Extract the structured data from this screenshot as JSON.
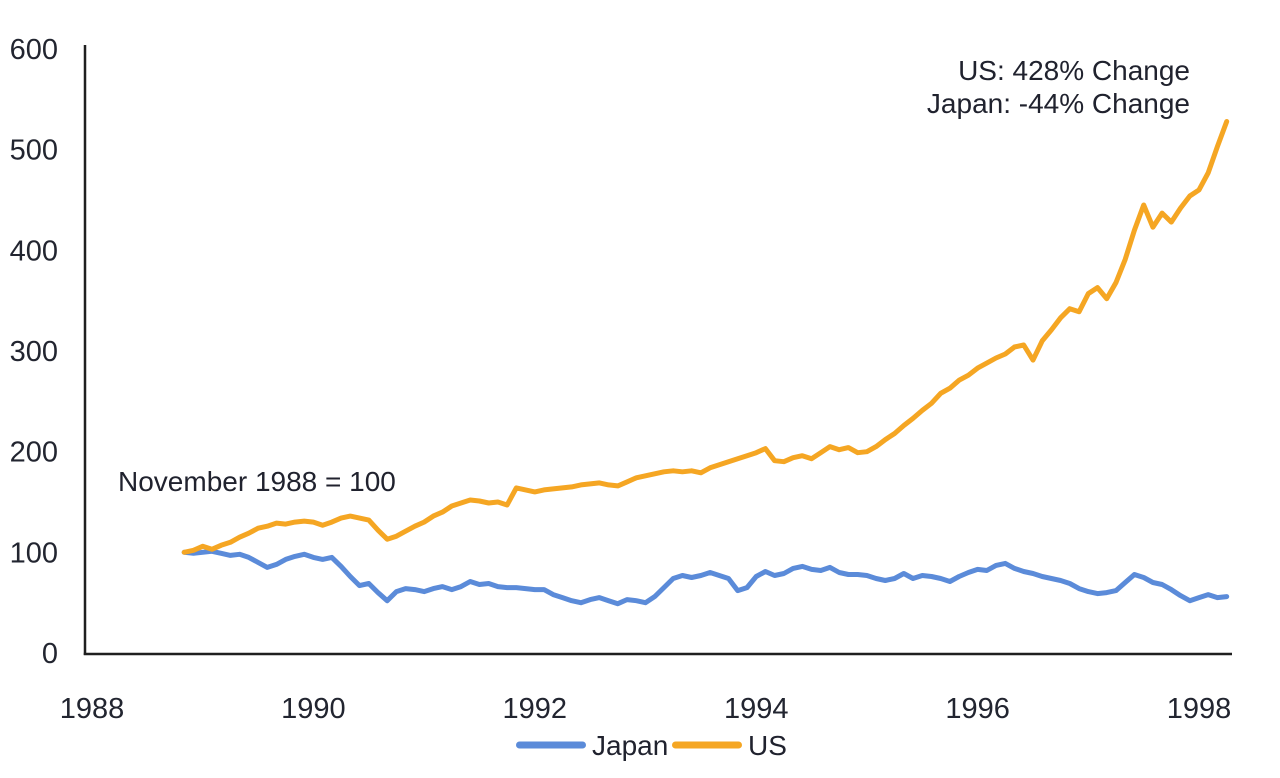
{
  "chart_data": {
    "type": "line",
    "title": "",
    "frequency": "monthly",
    "start": "1988-11",
    "end": "1998-04",
    "index_base_note": "November 1988 = 100",
    "x_axis": {
      "ticks": [
        1988,
        1990,
        1992,
        1994,
        1996,
        1998
      ],
      "range_years": [
        1988,
        1998.3
      ]
    },
    "y_axis": {
      "ticks": [
        0,
        100,
        200,
        300,
        400,
        500,
        600
      ],
      "range": [
        0,
        600
      ]
    },
    "grid": false,
    "legend_position": "bottom",
    "series": [
      {
        "name": "Japan",
        "color": "#5B8BD9",
        "total_change_pct": -44,
        "values": [
          100,
          99,
          100,
          101,
          99,
          97,
          98,
          95,
          90,
          85,
          88,
          93,
          96,
          98,
          95,
          93,
          95,
          86,
          76,
          67,
          69,
          60,
          52,
          61,
          64,
          63,
          61,
          64,
          66,
          63,
          66,
          71,
          68,
          69,
          66,
          65,
          65,
          64,
          63,
          63,
          58,
          55,
          52,
          50,
          53,
          55,
          52,
          49,
          53,
          52,
          50,
          56,
          65,
          74,
          77,
          75,
          77,
          80,
          77,
          74,
          62,
          65,
          76,
          81,
          77,
          79,
          84,
          86,
          83,
          82,
          85,
          80,
          78,
          78,
          77,
          74,
          72,
          74,
          79,
          74,
          77,
          76,
          74,
          71,
          76,
          80,
          83,
          82,
          87,
          89,
          84,
          81,
          79,
          76,
          74,
          72,
          69,
          64,
          61,
          59,
          60,
          62,
          70,
          78,
          75,
          70,
          68,
          63,
          57,
          52,
          55,
          58,
          55,
          56
        ]
      },
      {
        "name": "US",
        "color": "#F5A623",
        "total_change_pct": 428,
        "values": [
          100,
          102,
          106,
          103,
          107,
          110,
          115,
          119,
          124,
          126,
          129,
          128,
          130,
          131,
          130,
          127,
          130,
          134,
          136,
          134,
          132,
          122,
          113,
          116,
          121,
          126,
          130,
          136,
          140,
          146,
          149,
          152,
          151,
          149,
          150,
          147,
          164,
          162,
          160,
          162,
          163,
          164,
          165,
          167,
          168,
          169,
          167,
          166,
          170,
          174,
          176,
          178,
          180,
          181,
          180,
          181,
          179,
          184,
          187,
          190,
          193,
          196,
          199,
          203,
          191,
          190,
          194,
          196,
          193,
          199,
          205,
          202,
          204,
          199,
          200,
          205,
          212,
          218,
          226,
          233,
          241,
          248,
          258,
          263,
          271,
          276,
          283,
          288,
          293,
          297,
          304,
          306,
          291,
          310,
          321,
          333,
          342,
          339,
          357,
          363,
          352,
          368,
          391,
          420,
          445,
          423,
          437,
          428,
          442,
          454,
          460,
          477,
          503,
          528
        ]
      }
    ],
    "annotations": [
      "US: 428% Change",
      "Japan: -44% Change",
      "November 1988 = 100"
    ]
  },
  "annotations": {
    "us_change": "US: 428% Change",
    "japan_change": "Japan: -44% Change",
    "index_note": "November 1988 = 100"
  },
  "legend": {
    "items": [
      {
        "label": "Japan",
        "color": "#5B8BD9"
      },
      {
        "label": "US",
        "color": "#F5A623"
      }
    ]
  },
  "colors": {
    "japan_line": "#5B8BD9",
    "us_line": "#F5A623",
    "axis": "#1f1f1f",
    "text": "#20222e",
    "background": "#ffffff"
  }
}
